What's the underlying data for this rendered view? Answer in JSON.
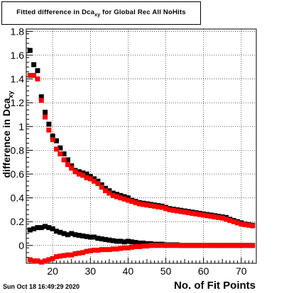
{
  "title": {
    "prefix": "Fitted difference in Dca",
    "subscript": "xy",
    "suffix": " for Global Rec All NoHits"
  },
  "timestamp": "Sun Oct 18 16:49:29 2020",
  "chart_data": {
    "type": "scatter",
    "xlabel": "No. of Fit Points",
    "ylabel": {
      "main": "difference in Dca",
      "subscript": "xy"
    },
    "xlim": [
      13,
      74
    ],
    "ylim": [
      -0.15,
      1.82
    ],
    "x_ticks": [
      20,
      30,
      40,
      50,
      60,
      70
    ],
    "y_ticks": [
      0,
      0.2,
      0.4,
      0.6,
      0.8,
      1,
      1.2,
      1.4,
      1.6,
      1.8
    ],
    "y_tick_labels": [
      "0",
      "0.2",
      "0.4",
      "0.6",
      "0.8",
      "1",
      "1.2",
      "1.4",
      "1.6",
      "1.8"
    ],
    "grid": true,
    "series": [
      {
        "color": "#000000",
        "marker": "square",
        "x": [
          14,
          15,
          16,
          17,
          18,
          19,
          20,
          21,
          22,
          23,
          24,
          25,
          26,
          27,
          28,
          29,
          30,
          31,
          32,
          33,
          34,
          35,
          36,
          37,
          38,
          39,
          40,
          41,
          42,
          43,
          44,
          45,
          46,
          47,
          48,
          49,
          50,
          51,
          52,
          53,
          54,
          55,
          56,
          57,
          58,
          59,
          60,
          61,
          62,
          63,
          64,
          65,
          66,
          67,
          68,
          69,
          70,
          71,
          72,
          73
        ],
        "y": [
          1.64,
          1.52,
          1.47,
          1.25,
          1.12,
          1.02,
          0.92,
          0.88,
          0.82,
          0.77,
          0.72,
          0.67,
          0.63,
          0.62,
          0.61,
          0.6,
          0.58,
          0.56,
          0.54,
          0.51,
          0.48,
          0.46,
          0.44,
          0.43,
          0.42,
          0.41,
          0.4,
          0.38,
          0.37,
          0.36,
          0.355,
          0.35,
          0.345,
          0.34,
          0.335,
          0.33,
          0.32,
          0.31,
          0.305,
          0.3,
          0.295,
          0.29,
          0.285,
          0.28,
          0.275,
          0.27,
          0.265,
          0.26,
          0.255,
          0.25,
          0.245,
          0.24,
          0.235,
          0.22,
          0.21,
          0.2,
          0.19,
          0.18,
          0.175,
          0.17
        ]
      },
      {
        "color": "#ff0000",
        "marker": "square",
        "x": [
          14,
          15,
          16,
          17,
          18,
          19,
          20,
          21,
          22,
          23,
          24,
          25,
          26,
          27,
          28,
          29,
          30,
          31,
          32,
          33,
          34,
          35,
          36,
          37,
          38,
          39,
          40,
          41,
          42,
          43,
          44,
          45,
          46,
          47,
          48,
          49,
          50,
          51,
          52,
          53,
          54,
          55,
          56,
          57,
          58,
          59,
          60,
          61,
          62,
          63,
          64,
          65,
          66,
          67,
          68,
          69,
          70,
          71,
          72,
          73
        ],
        "y": [
          1.43,
          1.43,
          1.4,
          1.22,
          1.08,
          0.97,
          0.89,
          0.81,
          0.77,
          0.72,
          0.68,
          0.65,
          0.62,
          0.6,
          0.59,
          0.57,
          0.56,
          0.54,
          0.52,
          0.49,
          0.46,
          0.44,
          0.42,
          0.41,
          0.4,
          0.39,
          0.38,
          0.37,
          0.36,
          0.35,
          0.345,
          0.34,
          0.335,
          0.33,
          0.325,
          0.32,
          0.31,
          0.3,
          0.295,
          0.29,
          0.285,
          0.28,
          0.275,
          0.27,
          0.265,
          0.26,
          0.255,
          0.25,
          0.245,
          0.24,
          0.235,
          0.23,
          0.22,
          0.21,
          0.2,
          0.19,
          0.18,
          0.175,
          0.17,
          0.165
        ]
      },
      {
        "color": "#000000",
        "marker": "square",
        "x": [
          14,
          15,
          16,
          17,
          18,
          19,
          20,
          21,
          22,
          23,
          24,
          25,
          26,
          27,
          28,
          29,
          30,
          31,
          32,
          33,
          34,
          35,
          36,
          37,
          38,
          39,
          40,
          41,
          42,
          43,
          44,
          45,
          46,
          47,
          48,
          49,
          50,
          51,
          52,
          53,
          54,
          55,
          56,
          57,
          58,
          59,
          60,
          61,
          62,
          63,
          64,
          65,
          66,
          67,
          68,
          69,
          70,
          71,
          72,
          73
        ],
        "y": [
          0.13,
          0.14,
          0.15,
          0.15,
          0.16,
          0.15,
          0.14,
          0.12,
          0.11,
          0.1,
          0.09,
          0.1,
          0.09,
          0.085,
          0.08,
          0.075,
          0.07,
          0.07,
          0.06,
          0.055,
          0.05,
          0.045,
          0.04,
          0.035,
          0.035,
          0.03,
          0.035,
          0.03,
          0.025,
          0.02,
          0.02,
          0.015,
          0.015,
          0.01,
          0.01,
          0.01,
          0.005,
          0.005,
          0.005,
          0.005,
          0.0,
          0.0,
          0.0,
          0.0,
          0.0,
          0.0,
          0.0,
          0.0,
          0.0,
          0.0,
          0.0,
          0.0,
          0.0,
          0.0,
          0.0,
          0.0,
          0.0,
          0.0,
          0.0,
          0.0
        ]
      },
      {
        "color": "#ff0000",
        "marker": "square",
        "x": [
          14,
          15,
          16,
          17,
          18,
          19,
          20,
          21,
          22,
          23,
          24,
          25,
          26,
          27,
          28,
          29,
          30,
          31,
          32,
          33,
          34,
          35,
          36,
          37,
          38,
          39,
          40,
          41,
          42,
          43,
          44,
          45,
          46,
          47,
          48,
          49,
          50,
          51,
          52,
          53,
          54,
          55,
          56,
          57,
          58,
          59,
          60,
          61,
          62,
          63,
          64,
          65,
          66,
          67,
          68,
          69,
          70,
          71,
          72,
          73
        ],
        "y": [
          -0.12,
          -0.13,
          -0.13,
          -0.14,
          -0.13,
          -0.12,
          -0.11,
          -0.095,
          -0.09,
          -0.085,
          -0.08,
          -0.08,
          -0.07,
          -0.065,
          -0.06,
          -0.05,
          -0.045,
          -0.04,
          -0.04,
          -0.035,
          -0.035,
          -0.035,
          -0.03,
          -0.03,
          -0.025,
          -0.02,
          -0.02,
          -0.015,
          -0.01,
          -0.01,
          -0.005,
          -0.005,
          0.0,
          0.0,
          0.0,
          0.0,
          0.0,
          0.0,
          0.0,
          0.0,
          0.0,
          0.0,
          0.0,
          0.0,
          0.0,
          0.0,
          0.0,
          0.0,
          0.0,
          0.0,
          0.0,
          0.0,
          0.0,
          0.0,
          0.0,
          0.0,
          0.0,
          0.0,
          0.0,
          0.0
        ]
      }
    ]
  }
}
